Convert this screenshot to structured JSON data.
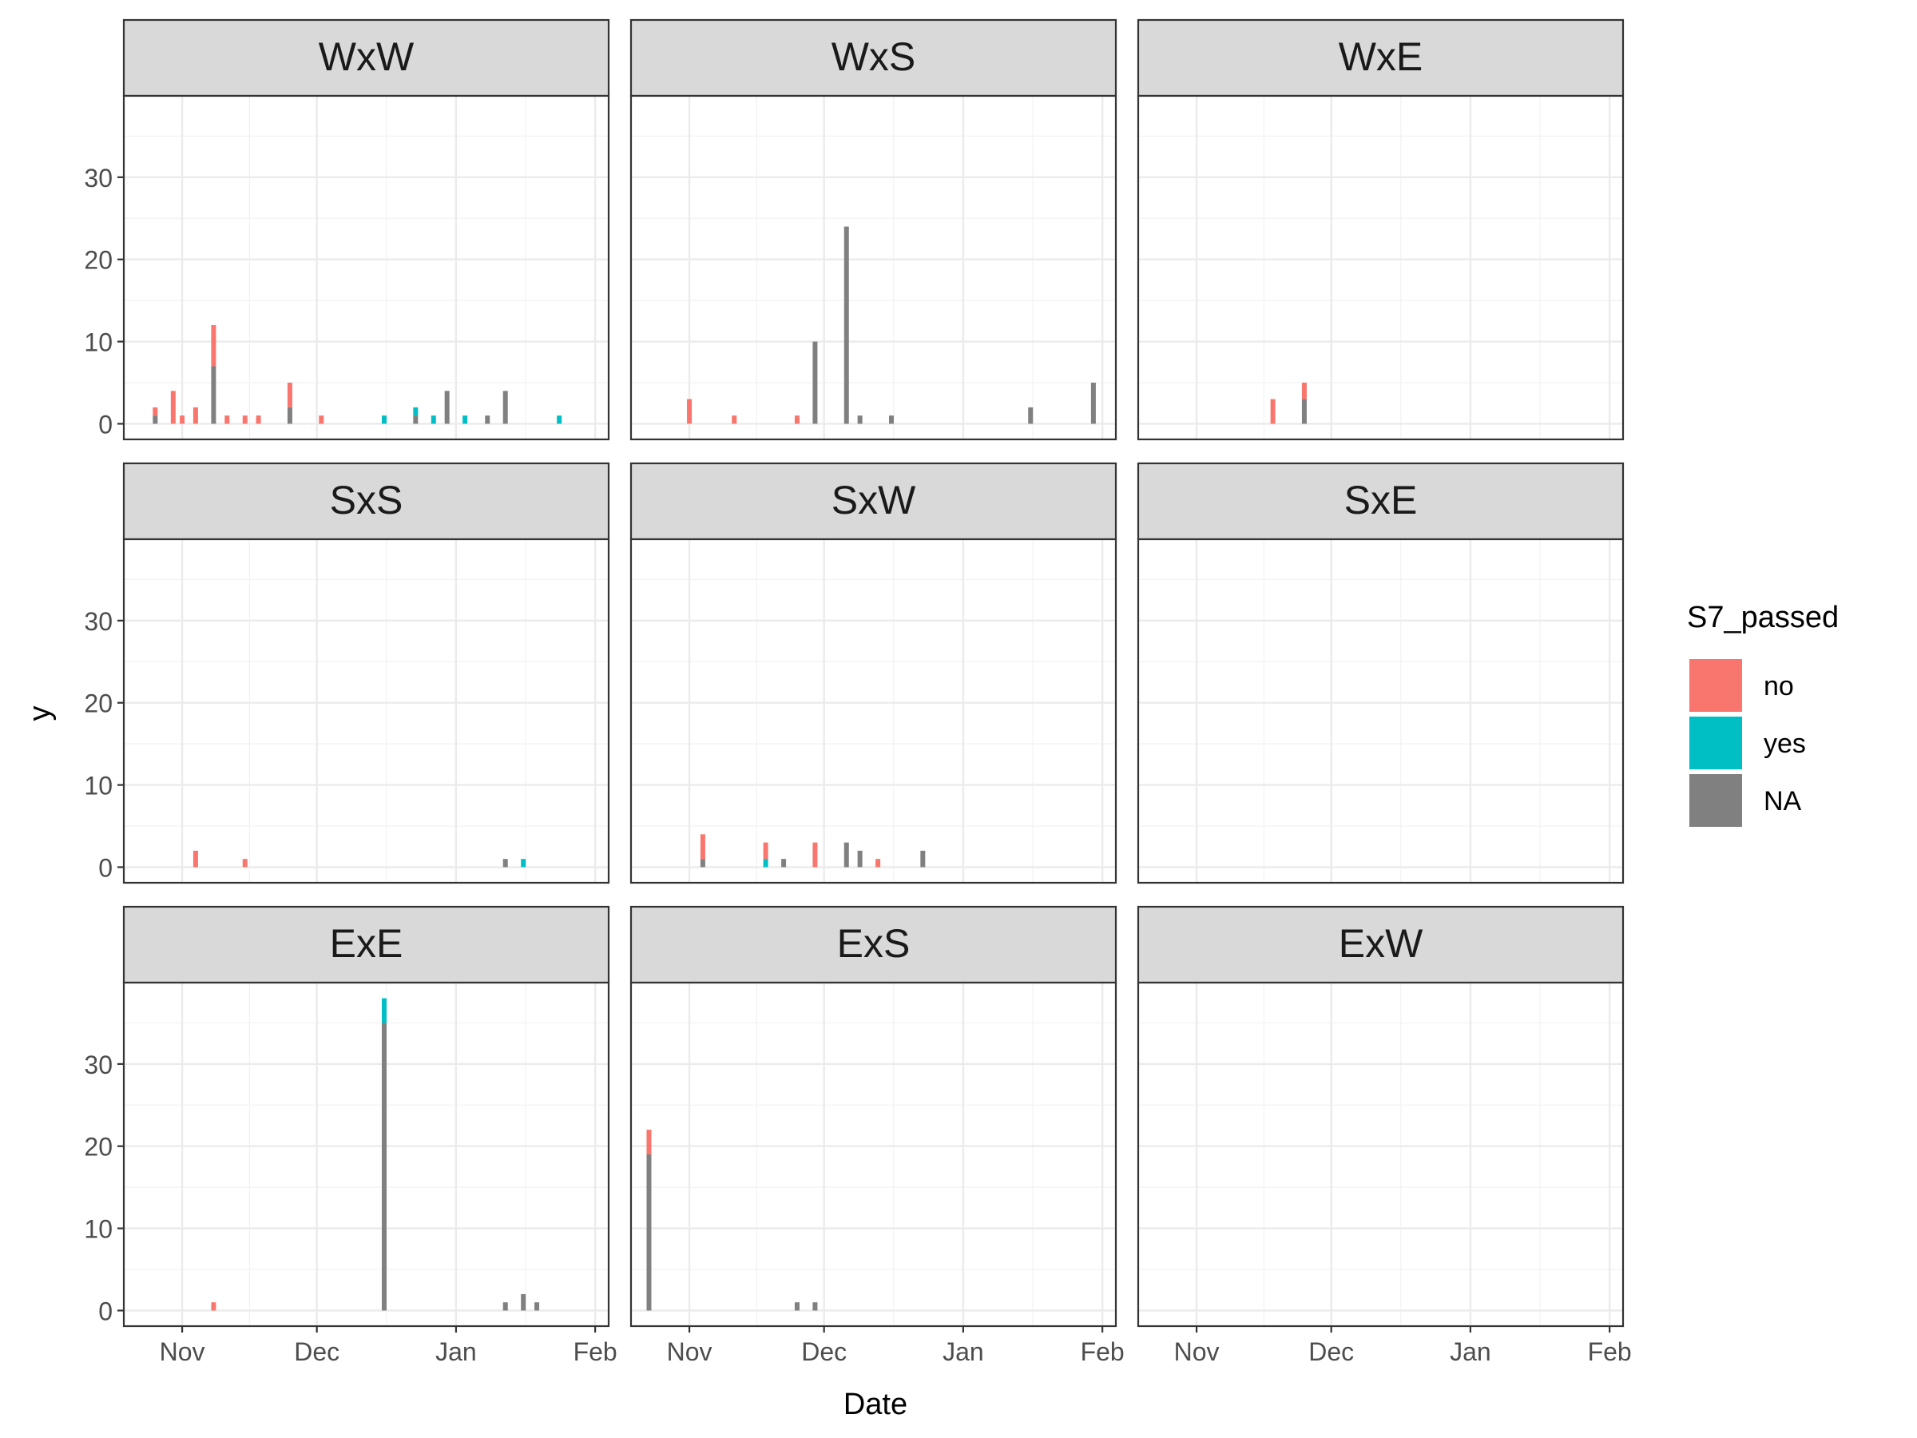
{
  "chart_data": {
    "type": "bar",
    "stacked": true,
    "xlabel": "Date",
    "ylabel": "y",
    "x_ticks": [
      "Nov",
      "Dec",
      "Jan",
      "Feb"
    ],
    "x_tick_dates": [
      "2022-11-01",
      "2022-12-01",
      "2023-01-01",
      "2023-02-01"
    ],
    "xlim": [
      "2022-10-19",
      "2023-02-04"
    ],
    "y_ticks": [
      "0",
      "10",
      "20",
      "30"
    ],
    "ylim": [
      -1.9,
      39.9
    ],
    "grid": true,
    "legend": {
      "title": "S7_passed",
      "position": "right",
      "entries": [
        {
          "label": "no",
          "color": "#F8766D"
        },
        {
          "label": "yes",
          "color": "#00BFC4"
        },
        {
          "label": "NA",
          "color": "#808080"
        }
      ]
    },
    "panels": [
      {
        "title": "WxW",
        "bars": [
          {
            "date": "2022-10-26",
            "no": 1,
            "yes": 0,
            "NA": 1
          },
          {
            "date": "2022-10-30",
            "no": 4,
            "yes": 0,
            "NA": 0
          },
          {
            "date": "2022-11-01",
            "no": 1,
            "yes": 0,
            "NA": 0
          },
          {
            "date": "2022-11-04",
            "no": 2,
            "yes": 0,
            "NA": 0
          },
          {
            "date": "2022-11-08",
            "no": 5,
            "yes": 0,
            "NA": 7
          },
          {
            "date": "2022-11-11",
            "no": 1,
            "yes": 0,
            "NA": 0
          },
          {
            "date": "2022-11-15",
            "no": 1,
            "yes": 0,
            "NA": 0
          },
          {
            "date": "2022-11-18",
            "no": 1,
            "yes": 0,
            "NA": 0
          },
          {
            "date": "2022-11-25",
            "no": 3,
            "yes": 0,
            "NA": 2
          },
          {
            "date": "2022-12-02",
            "no": 1,
            "yes": 0,
            "NA": 0
          },
          {
            "date": "2022-12-16",
            "no": 0,
            "yes": 1,
            "NA": 0
          },
          {
            "date": "2022-12-23",
            "no": 0,
            "yes": 1,
            "NA": 1
          },
          {
            "date": "2022-12-27",
            "no": 0,
            "yes": 1,
            "NA": 0
          },
          {
            "date": "2022-12-30",
            "no": 0,
            "yes": 0,
            "NA": 4
          },
          {
            "date": "2023-01-03",
            "no": 0,
            "yes": 1,
            "NA": 0
          },
          {
            "date": "2023-01-08",
            "no": 0,
            "yes": 0,
            "NA": 1
          },
          {
            "date": "2023-01-12",
            "no": 0,
            "yes": 0,
            "NA": 4
          },
          {
            "date": "2023-01-24",
            "no": 0,
            "yes": 1,
            "NA": 0
          }
        ]
      },
      {
        "title": "WxS",
        "bars": [
          {
            "date": "2022-11-01",
            "no": 3,
            "yes": 0,
            "NA": 0
          },
          {
            "date": "2022-11-11",
            "no": 1,
            "yes": 0,
            "NA": 0
          },
          {
            "date": "2022-11-25",
            "no": 1,
            "yes": 0,
            "NA": 0
          },
          {
            "date": "2022-11-29",
            "no": 0,
            "yes": 0,
            "NA": 10
          },
          {
            "date": "2022-12-06",
            "no": 0,
            "yes": 0,
            "NA": 24
          },
          {
            "date": "2022-12-09",
            "no": 0,
            "yes": 0,
            "NA": 1
          },
          {
            "date": "2022-12-16",
            "no": 0,
            "yes": 0,
            "NA": 1
          },
          {
            "date": "2023-01-16",
            "no": 0,
            "yes": 0,
            "NA": 2
          },
          {
            "date": "2023-01-30",
            "no": 0,
            "yes": 0,
            "NA": 5
          }
        ]
      },
      {
        "title": "WxE",
        "bars": [
          {
            "date": "2022-11-18",
            "no": 3,
            "yes": 0,
            "NA": 0
          },
          {
            "date": "2022-11-25",
            "no": 2,
            "yes": 0,
            "NA": 3
          }
        ]
      },
      {
        "title": "SxS",
        "bars": [
          {
            "date": "2022-11-04",
            "no": 2,
            "yes": 0,
            "NA": 0
          },
          {
            "date": "2022-11-15",
            "no": 1,
            "yes": 0,
            "NA": 0
          },
          {
            "date": "2023-01-12",
            "no": 0,
            "yes": 0,
            "NA": 1
          },
          {
            "date": "2023-01-16",
            "no": 0,
            "yes": 1,
            "NA": 0
          }
        ]
      },
      {
        "title": "SxW",
        "bars": [
          {
            "date": "2022-11-04",
            "no": 3,
            "yes": 0,
            "NA": 1
          },
          {
            "date": "2022-11-18",
            "no": 2,
            "yes": 1,
            "NA": 0
          },
          {
            "date": "2022-11-22",
            "no": 0,
            "yes": 0,
            "NA": 1
          },
          {
            "date": "2022-11-29",
            "no": 3,
            "yes": 0,
            "NA": 0
          },
          {
            "date": "2022-12-06",
            "no": 0,
            "yes": 0,
            "NA": 3
          },
          {
            "date": "2022-12-09",
            "no": 0,
            "yes": 0,
            "NA": 2
          },
          {
            "date": "2022-12-13",
            "no": 1,
            "yes": 0,
            "NA": 0
          },
          {
            "date": "2022-12-23",
            "no": 0,
            "yes": 0,
            "NA": 2
          }
        ]
      },
      {
        "title": "SxE",
        "bars": []
      },
      {
        "title": "ExE",
        "bars": [
          {
            "date": "2022-11-08",
            "no": 1,
            "yes": 0,
            "NA": 0
          },
          {
            "date": "2022-12-16",
            "no": 0,
            "yes": 3,
            "NA": 35
          },
          {
            "date": "2023-01-12",
            "no": 0,
            "yes": 0,
            "NA": 1
          },
          {
            "date": "2023-01-16",
            "no": 0,
            "yes": 0,
            "NA": 2
          },
          {
            "date": "2023-01-19",
            "no": 0,
            "yes": 0,
            "NA": 1
          }
        ]
      },
      {
        "title": "ExS",
        "bars": [
          {
            "date": "2022-10-23",
            "no": 3,
            "yes": 0,
            "NA": 19
          },
          {
            "date": "2022-11-25",
            "no": 0,
            "yes": 0,
            "NA": 1
          },
          {
            "date": "2022-11-29",
            "no": 0,
            "yes": 0,
            "NA": 1
          }
        ]
      },
      {
        "title": "ExW",
        "bars": []
      }
    ]
  }
}
